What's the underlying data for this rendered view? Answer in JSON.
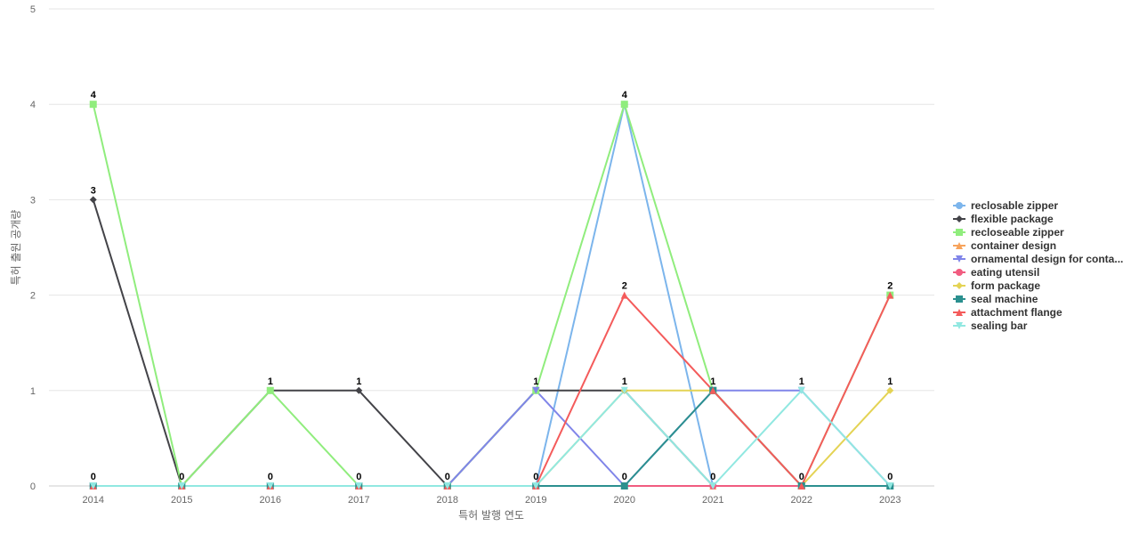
{
  "chart_data": {
    "type": "line",
    "xlabel": "특허 발행 연도",
    "ylabel": "특허 출원 공개량",
    "ylim": [
      0,
      5
    ],
    "y_ticks": [
      0,
      1,
      2,
      3,
      4,
      5
    ],
    "grid": true,
    "legend_position": "right",
    "categories": [
      "2014",
      "2015",
      "2016",
      "2017",
      "2018",
      "2019",
      "2020",
      "2021",
      "2022",
      "2023"
    ],
    "series": [
      {
        "name": "reclosable zipper",
        "color": "#7cb5ec",
        "marker": "circle",
        "values": [
          0,
          0,
          0,
          0,
          0,
          0,
          4,
          0,
          0,
          0
        ]
      },
      {
        "name": "flexible package",
        "color": "#434348",
        "marker": "diamond",
        "values": [
          3,
          0,
          1,
          1,
          0,
          1,
          1,
          0,
          0,
          0
        ]
      },
      {
        "name": "recloseable zipper",
        "color": "#90ed7d",
        "marker": "square",
        "values": [
          4,
          0,
          1,
          0,
          0,
          1,
          4,
          1,
          0,
          2
        ]
      },
      {
        "name": "container design",
        "color": "#f7a35c",
        "marker": "triangle",
        "values": [
          0,
          0,
          0,
          0,
          0,
          0,
          0,
          0,
          0,
          0
        ]
      },
      {
        "name": "ornamental design for conta...",
        "color": "#8085e9",
        "marker": "triangle-down",
        "values": [
          0,
          0,
          0,
          0,
          0,
          1,
          0,
          1,
          1,
          0
        ]
      },
      {
        "name": "eating utensil",
        "color": "#f15c80",
        "marker": "circle",
        "values": [
          0,
          0,
          0,
          0,
          0,
          0,
          0,
          0,
          0,
          0
        ]
      },
      {
        "name": "form package",
        "color": "#e4d354",
        "marker": "diamond",
        "values": [
          0,
          0,
          0,
          0,
          0,
          0,
          1,
          1,
          0,
          1
        ]
      },
      {
        "name": "seal machine",
        "color": "#2b908f",
        "marker": "square",
        "values": [
          0,
          0,
          0,
          0,
          0,
          0,
          0,
          1,
          0,
          0
        ]
      },
      {
        "name": "attachment flange",
        "color": "#f45b5b",
        "marker": "triangle",
        "values": [
          0,
          0,
          0,
          0,
          0,
          0,
          2,
          1,
          0,
          2
        ]
      },
      {
        "name": "sealing bar",
        "color": "#91e8e1",
        "marker": "triangle-down",
        "values": [
          0,
          0,
          0,
          0,
          0,
          0,
          1,
          0,
          1,
          0
        ]
      }
    ],
    "data_labels": [
      {
        "x": "2014",
        "y": 4,
        "text": "4"
      },
      {
        "x": "2014",
        "y": 3,
        "text": "3"
      },
      {
        "x": "2014",
        "y": 0,
        "text": "0"
      },
      {
        "x": "2015",
        "y": 0,
        "text": "0"
      },
      {
        "x": "2016",
        "y": 1,
        "text": "1"
      },
      {
        "x": "2016",
        "y": 0,
        "text": "0"
      },
      {
        "x": "2017",
        "y": 1,
        "text": "1"
      },
      {
        "x": "2017",
        "y": 0,
        "text": "0"
      },
      {
        "x": "2018",
        "y": 0,
        "text": "0"
      },
      {
        "x": "2019",
        "y": 1,
        "text": "1"
      },
      {
        "x": "2019",
        "y": 0,
        "text": "0"
      },
      {
        "x": "2020",
        "y": 4,
        "text": "4"
      },
      {
        "x": "2020",
        "y": 2,
        "text": "2"
      },
      {
        "x": "2020",
        "y": 1,
        "text": "1"
      },
      {
        "x": "2020",
        "y": 0,
        "text": "0"
      },
      {
        "x": "2021",
        "y": 1,
        "text": "1"
      },
      {
        "x": "2021",
        "y": 0,
        "text": "0"
      },
      {
        "x": "2022",
        "y": 1,
        "text": "1"
      },
      {
        "x": "2022",
        "y": 0,
        "text": "0"
      },
      {
        "x": "2023",
        "y": 2,
        "text": "2"
      },
      {
        "x": "2023",
        "y": 1,
        "text": "1"
      },
      {
        "x": "2023",
        "y": 0,
        "text": "0"
      }
    ]
  }
}
